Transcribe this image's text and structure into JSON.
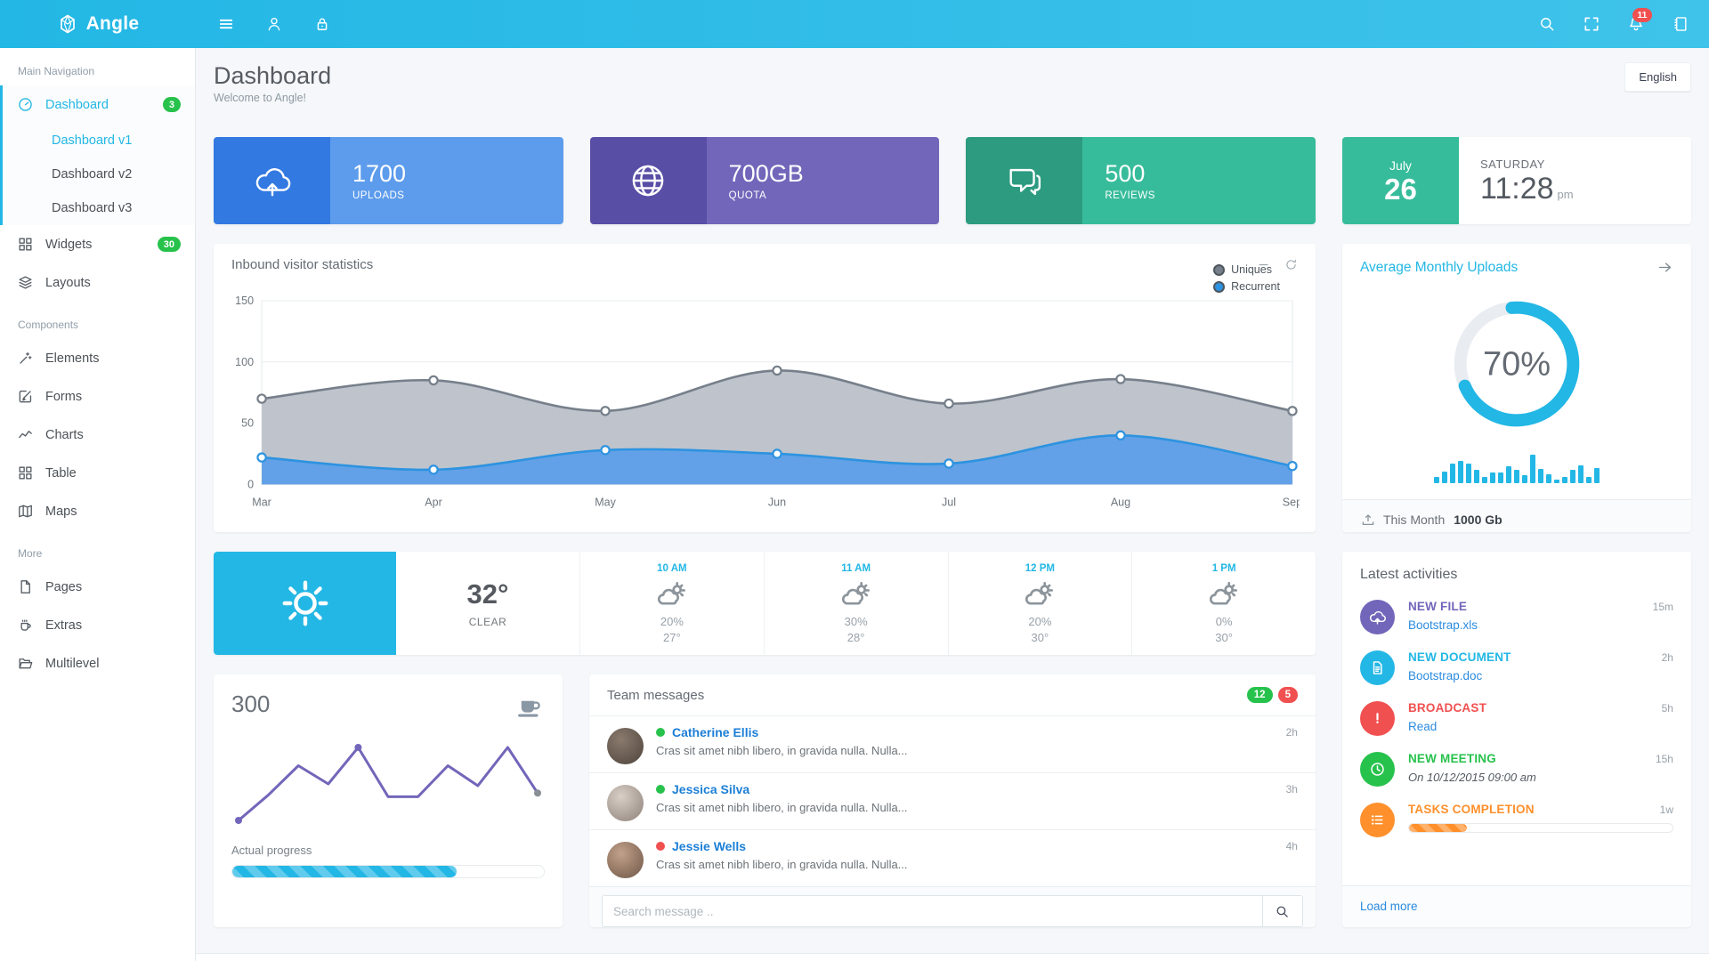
{
  "navbar": {
    "brand": "Angle",
    "notifications_count": "11",
    "bar_color": "#23b7e5"
  },
  "header": {
    "title": "Dashboard",
    "subtitle": "Welcome to Angle!",
    "language_button": "English"
  },
  "sidebar": {
    "sections": [
      {
        "label": "Main Navigation",
        "items": [
          {
            "label": "Dashboard",
            "icon": "speedometer-icon",
            "badge": "3",
            "active": true,
            "submenu": [
              {
                "label": "Dashboard v1",
                "active": true
              },
              {
                "label": "Dashboard v2",
                "active": false
              },
              {
                "label": "Dashboard v3",
                "active": false
              }
            ]
          },
          {
            "label": "Widgets",
            "icon": "grid-icon",
            "badge": "30"
          },
          {
            "label": "Layouts",
            "icon": "layers-icon"
          }
        ]
      },
      {
        "label": "Components",
        "items": [
          {
            "label": "Elements",
            "icon": "wand-icon"
          },
          {
            "label": "Forms",
            "icon": "pencil-square-icon"
          },
          {
            "label": "Charts",
            "icon": "chart-line-icon"
          },
          {
            "label": "Table",
            "icon": "grid-icon"
          },
          {
            "label": "Maps",
            "icon": "map-icon"
          }
        ]
      },
      {
        "label": "More",
        "items": [
          {
            "label": "Pages",
            "icon": "file-icon"
          },
          {
            "label": "Extras",
            "icon": "cup-icon"
          },
          {
            "label": "Multilevel",
            "icon": "folder-open-icon"
          }
        ]
      }
    ]
  },
  "stats": [
    {
      "value": "1700",
      "label": "UPLOADS",
      "icon": "cloud-upload-icon",
      "color": "#5d9cec",
      "color_dark": "#3279e2"
    },
    {
      "value": "700GB",
      "label": "QUOTA",
      "icon": "globe-icon",
      "color": "#7266ba",
      "color_dark": "#584ea6"
    },
    {
      "value": "500",
      "label": "REVIEWS",
      "icon": "chat-icon",
      "color": "#37bc9b",
      "color_dark": "#2d9b80"
    }
  ],
  "date_card": {
    "month": "July",
    "day": "26",
    "weekday": "SATURDAY",
    "time": "11:28",
    "meridiem": "pm",
    "accent": "#37bc9b"
  },
  "visitor_panel": {
    "title": "Inbound visitor statistics"
  },
  "chart_data": [
    {
      "type": "area",
      "title": "Inbound visitor statistics",
      "categories": [
        "Mar",
        "Apr",
        "May",
        "Jun",
        "Jul",
        "Aug",
        "Sep"
      ],
      "series": [
        {
          "name": "Uniques",
          "values": [
            70,
            85,
            60,
            93,
            66,
            86,
            60
          ],
          "stroke": "#767f8a",
          "fill": "#bac0c9"
        },
        {
          "name": "Recurrent",
          "values": [
            22,
            12,
            28,
            25,
            17,
            40,
            15
          ],
          "stroke": "#2d93e0",
          "fill": "#5d9fe8"
        }
      ],
      "ylim": [
        0,
        150
      ],
      "yticks": [
        0,
        50,
        100,
        150
      ],
      "legend_position": "top-right",
      "grid": true
    },
    {
      "type": "donut",
      "title": "Average Monthly Uploads",
      "percent": 70,
      "color": "#23b7e5",
      "track_color": "#e9edf1"
    },
    {
      "type": "bar",
      "title": "monthly-uploads-sparkbars",
      "values": [
        5,
        9,
        15,
        17,
        15,
        10,
        5,
        8,
        8,
        13,
        10,
        6,
        22,
        11,
        7,
        3,
        5,
        10,
        14,
        5,
        12
      ],
      "color": "#23b7e5"
    },
    {
      "type": "line",
      "title": "progress-sparkline",
      "values": [
        1,
        2.4,
        4,
        3,
        5,
        2.3,
        2.3,
        4,
        2.9,
        5,
        2.5
      ],
      "color": "#7266ba",
      "dot_indices": [
        0,
        4,
        10
      ],
      "end_dot_color": "#8a9196"
    }
  ],
  "uploads_panel": {
    "title": "Average Monthly Uploads",
    "percent_label": "70%",
    "footer_label": "This Month",
    "footer_value": "1000 Gb"
  },
  "weather": {
    "current_temp": "32°",
    "condition": "CLEAR",
    "hours": [
      {
        "time": "10 AM",
        "precipitation": "20%",
        "temp": "27°"
      },
      {
        "time": "11 AM",
        "precipitation": "30%",
        "temp": "28°"
      },
      {
        "time": "12 PM",
        "precipitation": "20%",
        "temp": "30°"
      },
      {
        "time": "1 PM",
        "precipitation": "0%",
        "temp": "30°"
      }
    ]
  },
  "progress_card": {
    "value": "300",
    "label": "Actual progress",
    "progress_percent": 72
  },
  "team_messages": {
    "title": "Team messages",
    "badge_green": "12",
    "badge_red": "5",
    "search_placeholder": "Search message ..",
    "messages": [
      {
        "name": "Catherine Ellis",
        "status_color": "#27c24c",
        "text": "Cras sit amet nibh libero, in gravida nulla. Nulla...",
        "time": "2h",
        "avatar_colors": "#8a7a6d,#4e443c"
      },
      {
        "name": "Jessica Silva",
        "status_color": "#27c24c",
        "text": "Cras sit amet nibh libero, in gravida nulla. Nulla...",
        "time": "3h",
        "avatar_colors": "#d9cfc6,#8d8179"
      },
      {
        "name": "Jessie Wells",
        "status_color": "#f05050",
        "text": "Cras sit amet nibh libero, in gravida nulla. Nulla...",
        "time": "4h",
        "avatar_colors": "#c2a18a,#6e5646"
      }
    ]
  },
  "activities": {
    "title": "Latest activities",
    "items": [
      {
        "title": "NEW FILE",
        "color": "#7266ba",
        "icon": "cloud-upload-icon",
        "link": "Bootstrap.xls",
        "time": "15m"
      },
      {
        "title": "NEW DOCUMENT",
        "color": "#23b7e5",
        "icon": "doc-icon",
        "link": "Bootstrap.doc",
        "time": "2h"
      },
      {
        "title": "BROADCAST",
        "color": "#f05050",
        "icon": "alert-icon",
        "link": "Read",
        "time": "5h"
      },
      {
        "title": "NEW MEETING",
        "color": "#27c24c",
        "icon": "clock-icon",
        "note": "On 10/12/2015 09:00 am",
        "time": "15h"
      },
      {
        "title": "TASKS COMPLETION",
        "color": "#ff902b",
        "icon": "tasks-icon",
        "progress": 22,
        "time": "1w"
      }
    ],
    "load_more": "Load more"
  }
}
